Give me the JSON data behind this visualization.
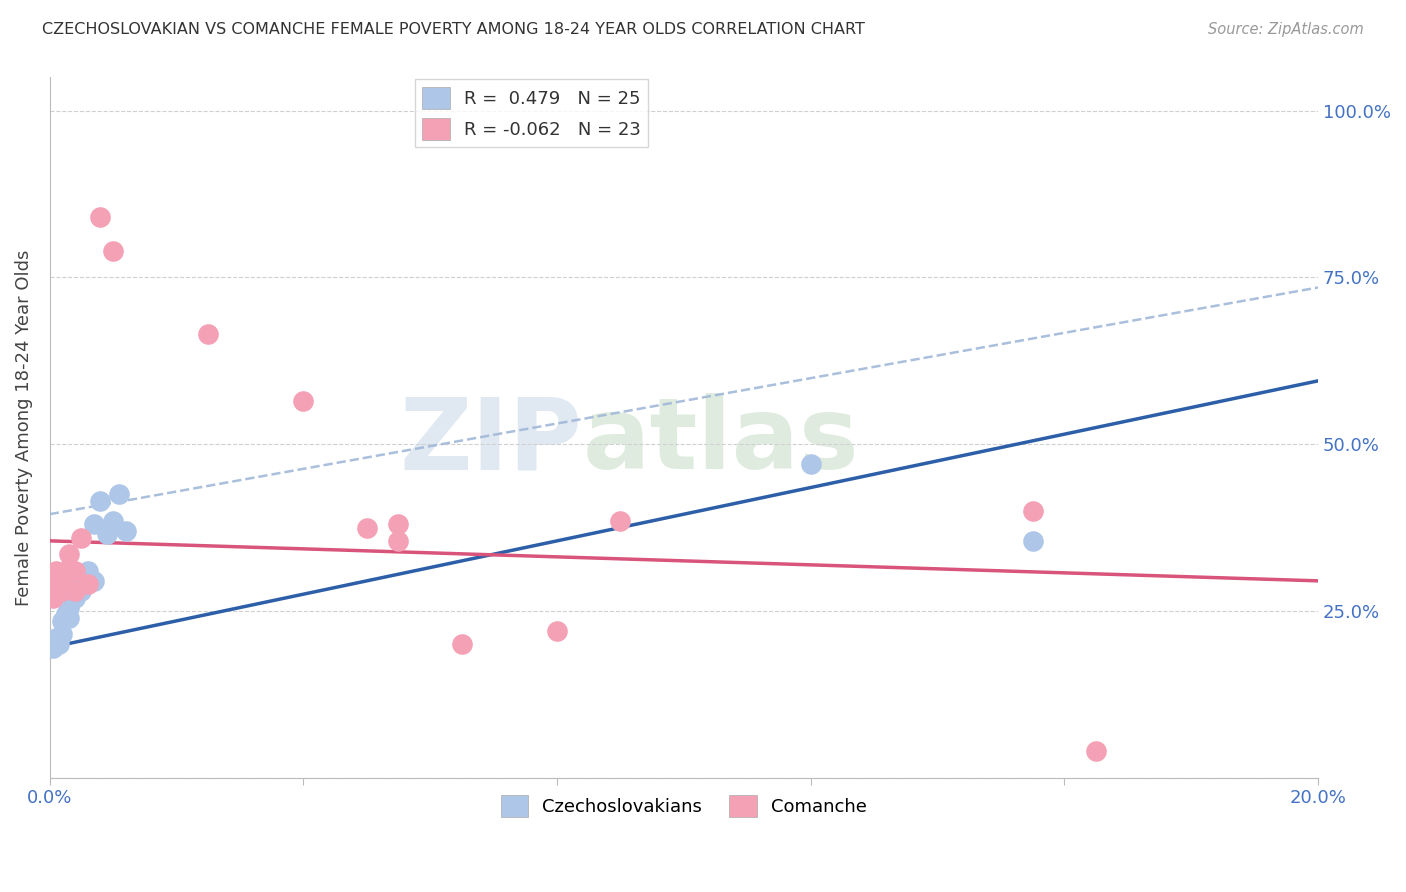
{
  "title": "CZECHOSLOVAKIAN VS COMANCHE FEMALE POVERTY AMONG 18-24 YEAR OLDS CORRELATION CHART",
  "source": "Source: ZipAtlas.com",
  "ylabel": "Female Poverty Among 18-24 Year Olds",
  "czech_color": "#aec6e8",
  "czech_line_color": "#2d5fa8",
  "comanche_color": "#f4a0b5",
  "comanche_line_color": "#d9547a",
  "dash_color": "#a0b8d8",
  "czech_r": 0.479,
  "czech_n": 25,
  "comanche_r": -0.062,
  "comanche_n": 23,
  "czech_line_x": [
    0.0,
    0.2
  ],
  "czech_line_y": [
    0.195,
    0.595
  ],
  "comanche_line_x": [
    0.0,
    0.2
  ],
  "comanche_line_y": [
    0.355,
    0.295
  ],
  "dash_line_x": [
    0.0,
    0.2
  ],
  "dash_line_y": [
    0.395,
    0.735
  ],
  "czech_points_x": [
    0.0005,
    0.001,
    0.001,
    0.0015,
    0.002,
    0.002,
    0.0025,
    0.003,
    0.003,
    0.003,
    0.004,
    0.004,
    0.005,
    0.005,
    0.006,
    0.006,
    0.007,
    0.007,
    0.008,
    0.009,
    0.01,
    0.011,
    0.012,
    0.12,
    0.155
  ],
  "czech_points_y": [
    0.195,
    0.21,
    0.205,
    0.2,
    0.215,
    0.235,
    0.245,
    0.26,
    0.255,
    0.24,
    0.295,
    0.27,
    0.285,
    0.28,
    0.31,
    0.295,
    0.38,
    0.295,
    0.415,
    0.365,
    0.385,
    0.425,
    0.37,
    0.47,
    0.355
  ],
  "comanche_points_x": [
    0.0005,
    0.001,
    0.001,
    0.002,
    0.002,
    0.003,
    0.003,
    0.004,
    0.004,
    0.005,
    0.006,
    0.008,
    0.01,
    0.025,
    0.04,
    0.05,
    0.055,
    0.055,
    0.065,
    0.09,
    0.155,
    0.165,
    0.08
  ],
  "comanche_points_y": [
    0.27,
    0.29,
    0.31,
    0.28,
    0.3,
    0.315,
    0.335,
    0.28,
    0.31,
    0.36,
    0.29,
    0.84,
    0.79,
    0.665,
    0.565,
    0.375,
    0.355,
    0.38,
    0.2,
    0.385,
    0.4,
    0.04,
    0.22
  ],
  "xlim": [
    0.0,
    0.2
  ],
  "ylim": [
    0.0,
    1.05
  ],
  "x_ticks": [
    0.0,
    0.04,
    0.08,
    0.12,
    0.16,
    0.2
  ],
  "x_tick_labels": [
    "0.0%",
    "",
    "",
    "",
    "",
    "20.0%"
  ],
  "y_ticks": [
    0.0,
    0.25,
    0.5,
    0.75,
    1.0
  ],
  "y_tick_labels": [
    "",
    "25.0%",
    "50.0%",
    "75.0%",
    "100.0%"
  ]
}
